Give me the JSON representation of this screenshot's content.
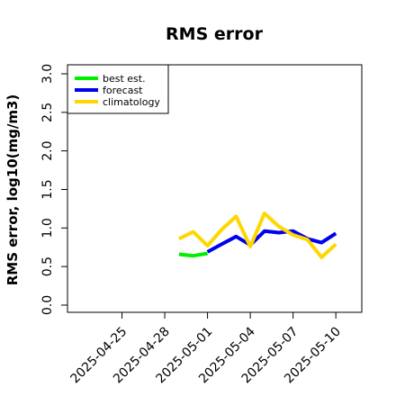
{
  "chart_data": {
    "type": "line",
    "title": "RMS error",
    "xlabel": "",
    "ylabel": "RMS error, log10(mg/m3)",
    "ylim": [
      0.0,
      3.0
    ],
    "yticks": [
      "0.0",
      "0.5",
      "1.0",
      "1.5",
      "2.0",
      "2.5",
      "3.0"
    ],
    "xlim": [
      "2025-04-22",
      "2025-05-11"
    ],
    "xticks": [
      {
        "date": "2025-04-25",
        "label": "2025-04-25",
        "color": "#000000"
      },
      {
        "date": "2025-04-28",
        "label": "2025-04-28",
        "color": "#000000"
      },
      {
        "date": "2025-05-01",
        "label": "2025-05-01",
        "color": "#228b22"
      },
      {
        "date": "2025-05-04",
        "label": "2025-05-04",
        "color": "#000000"
      },
      {
        "date": "2025-05-07",
        "label": "2025-05-07",
        "color": "#000000"
      },
      {
        "date": "2025-05-10",
        "label": "2025-05-10",
        "color": "#000000"
      }
    ],
    "legend_position": "top-left",
    "series": [
      {
        "name": "best est.",
        "color": "#00ee00",
        "points": [
          [
            "2025-04-29",
            0.66
          ],
          [
            "2025-04-30",
            0.64
          ],
          [
            "2025-05-01",
            0.67
          ]
        ]
      },
      {
        "name": "forecast",
        "color": "#0000ee",
        "points": [
          [
            "2025-05-01",
            0.69
          ],
          [
            "2025-05-02",
            0.79
          ],
          [
            "2025-05-03",
            0.89
          ],
          [
            "2025-05-04",
            0.78
          ],
          [
            "2025-05-05",
            0.96
          ],
          [
            "2025-05-06",
            0.94
          ],
          [
            "2025-05-07",
            0.96
          ],
          [
            "2025-05-08",
            0.86
          ],
          [
            "2025-05-09",
            0.81
          ],
          [
            "2025-05-10",
            0.93
          ]
        ]
      },
      {
        "name": "climatology",
        "color": "#ffd700",
        "points": [
          [
            "2025-04-29",
            0.86
          ],
          [
            "2025-04-30",
            0.95
          ],
          [
            "2025-05-01",
            0.77
          ],
          [
            "2025-05-02",
            0.98
          ],
          [
            "2025-05-03",
            1.15
          ],
          [
            "2025-05-04",
            0.76
          ],
          [
            "2025-05-05",
            1.19
          ],
          [
            "2025-05-06",
            1.02
          ],
          [
            "2025-05-07",
            0.91
          ],
          [
            "2025-05-08",
            0.85
          ],
          [
            "2025-05-09",
            0.62
          ],
          [
            "2025-05-10",
            0.79
          ]
        ]
      }
    ]
  }
}
